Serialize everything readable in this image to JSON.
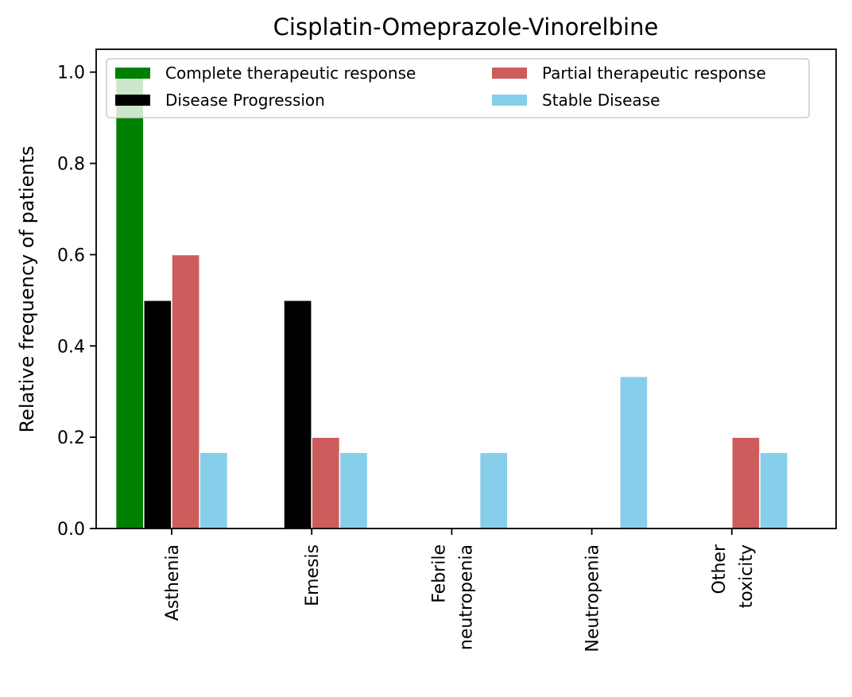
{
  "chart_data": {
    "type": "bar",
    "title": "Cisplatin-Omeprazole-Vinorelbine",
    "xlabel": "",
    "ylabel": "Relative frequency of patients",
    "ylim": [
      0,
      1.05
    ],
    "yticks": [
      "0.0",
      "0.2",
      "0.4",
      "0.6",
      "0.8",
      "1.0"
    ],
    "categories": [
      "Asthenia",
      "Emesis",
      "Febrile\nneutropenia",
      "Neutropenia",
      "Other\ntoxicity"
    ],
    "series": [
      {
        "name": "Complete therapeutic response",
        "color": "#008000",
        "values": [
          1.0,
          0,
          0,
          0,
          0
        ]
      },
      {
        "name": "Disease Progression",
        "color": "#000000",
        "values": [
          0.5,
          0.5,
          0,
          0,
          0
        ]
      },
      {
        "name": "Partial therapeutic response",
        "color": "#CD5C5C",
        "values": [
          0.6,
          0.2,
          0,
          0,
          0.2
        ]
      },
      {
        "name": "Stable Disease",
        "color": "#87CEEB",
        "values": [
          0.1667,
          0.1667,
          0.1667,
          0.3333,
          0.1667
        ]
      }
    ],
    "legend_position": "top, two columns",
    "grid": false
  }
}
